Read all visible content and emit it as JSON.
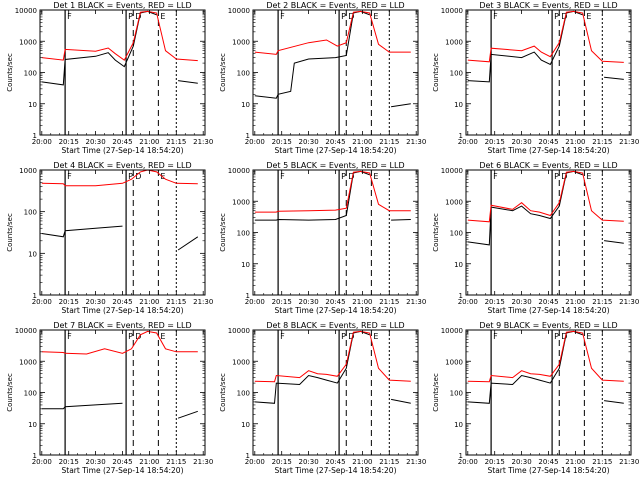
{
  "figure": {
    "xaxis_title": "Start Time (27-Sep-14 18:54:20)",
    "yaxis_title": "Counts/sec",
    "legend_text": "BLACK = Events, RED = LLD",
    "colors": {
      "events": "#000000",
      "lld": "#ff0000"
    },
    "x_tick_labels": [
      "20:00",
      "20:15",
      "20:30",
      "20:45",
      "21:00",
      "21:15",
      "21:30"
    ],
    "y_tick_labels": [
      "1",
      "10",
      "100",
      "1000",
      "10000"
    ],
    "marker_labels": [
      "F",
      "P",
      "D",
      "E"
    ]
  },
  "chart_data": [
    {
      "type": "line",
      "title": "Det 1",
      "yscale": "log",
      "ylim": [
        1,
        10000
      ],
      "xlim": [
        "19:59",
        "21:31"
      ],
      "x_ticks": [
        "20:00",
        "20:15",
        "20:30",
        "20:45",
        "21:00",
        "21:15",
        "21:30"
      ],
      "marker_lines": {
        "F": "20:13",
        "P": "20:47",
        "D": "20:51",
        "E": "21:05",
        "end": "21:15"
      },
      "series": [
        {
          "name": "Events",
          "color": "#000000",
          "x": [
            "20:00",
            "20:12",
            "20:13",
            "20:30",
            "20:37",
            "20:41",
            "20:46",
            "20:51",
            "20:55",
            "20:59",
            "21:04",
            "21:15",
            "21:16",
            "21:27"
          ],
          "y": [
            50,
            40,
            260,
            330,
            430,
            250,
            155,
            700,
            8000,
            9000,
            7000,
            null,
            55,
            45
          ]
        },
        {
          "name": "LLD",
          "color": "#ff0000",
          "x": [
            "20:00",
            "20:12",
            "20:13",
            "20:30",
            "20:37",
            "20:41",
            "20:46",
            "20:51",
            "20:55",
            "20:59",
            "21:04",
            "21:09",
            "21:15",
            "21:27"
          ],
          "y": [
            300,
            250,
            550,
            480,
            610,
            400,
            250,
            900,
            8500,
            9000,
            8000,
            500,
            270,
            240
          ]
        }
      ]
    },
    {
      "type": "line",
      "title": "Det 2",
      "yscale": "log",
      "ylim": [
        1,
        10000
      ],
      "xlim": [
        "19:59",
        "21:31"
      ],
      "x_ticks": [
        "20:00",
        "20:15",
        "20:30",
        "20:45",
        "21:00",
        "21:15",
        "21:30"
      ],
      "marker_lines": {
        "F": "20:13",
        "P": "20:47",
        "D": "20:51",
        "E": "21:05",
        "end": "21:15"
      },
      "series": [
        {
          "name": "Events",
          "color": "#000000",
          "x": [
            "20:00",
            "20:12",
            "20:13",
            "20:20",
            "20:22",
            "20:30",
            "20:45",
            "20:51",
            "20:55",
            "20:59",
            "21:04",
            "21:09",
            "21:16",
            "21:27"
          ],
          "y": [
            18,
            15,
            20,
            25,
            200,
            270,
            300,
            350,
            8000,
            9000,
            7000,
            null,
            8,
            10
          ]
        },
        {
          "name": "LLD",
          "color": "#ff0000",
          "x": [
            "20:00",
            "20:12",
            "20:13",
            "20:30",
            "20:40",
            "20:46",
            "20:51",
            "20:55",
            "20:59",
            "21:04",
            "21:09",
            "21:15",
            "21:27"
          ],
          "y": [
            450,
            380,
            500,
            900,
            1100,
            700,
            900,
            8500,
            9000,
            8000,
            800,
            450,
            450
          ]
        }
      ]
    },
    {
      "type": "line",
      "title": "Det 3",
      "yscale": "log",
      "ylim": [
        1,
        10000
      ],
      "xlim": [
        "19:59",
        "21:31"
      ],
      "x_ticks": [
        "20:00",
        "20:15",
        "20:30",
        "20:45",
        "21:00",
        "21:15",
        "21:30"
      ],
      "marker_lines": {
        "F": "20:13",
        "P": "20:47",
        "D": "20:51",
        "E": "21:05",
        "end": "21:15"
      },
      "series": [
        {
          "name": "Events",
          "color": "#000000",
          "x": [
            "20:00",
            "20:12",
            "20:13",
            "20:30",
            "20:37",
            "20:41",
            "20:46",
            "20:51",
            "20:55",
            "20:59",
            "21:04",
            "21:09",
            "21:16",
            "21:27"
          ],
          "y": [
            55,
            50,
            380,
            300,
            450,
            250,
            180,
            700,
            8000,
            9000,
            7000,
            null,
            70,
            60
          ]
        },
        {
          "name": "LLD",
          "color": "#ff0000",
          "x": [
            "20:00",
            "20:12",
            "20:13",
            "20:30",
            "20:37",
            "20:41",
            "20:46",
            "20:51",
            "20:55",
            "20:59",
            "21:04",
            "21:09",
            "21:15",
            "21:27"
          ],
          "y": [
            250,
            220,
            600,
            500,
            700,
            450,
            320,
            900,
            8500,
            9000,
            8000,
            500,
            230,
            210
          ]
        }
      ]
    },
    {
      "type": "line",
      "title": "Det 4",
      "yscale": "log",
      "ylim": [
        1,
        1000
      ],
      "xlim": [
        "19:59",
        "21:31"
      ],
      "x_ticks": [
        "20:00",
        "20:15",
        "20:30",
        "20:45",
        "21:00",
        "21:15",
        "21:30"
      ],
      "marker_lines": {
        "F": "20:13",
        "P": "20:47",
        "D": "20:51",
        "E": "21:05",
        "end": "21:15"
      },
      "series": [
        {
          "name": "Events",
          "color": "#000000",
          "x": [
            "20:00",
            "20:12",
            "20:13",
            "20:30",
            "20:45",
            "20:46",
            "21:04",
            "21:16",
            "21:27"
          ],
          "y": [
            30,
            25,
            35,
            40,
            45,
            null,
            null,
            12,
            25
          ]
        },
        {
          "name": "LLD",
          "color": "#ff0000",
          "x": [
            "20:00",
            "20:12",
            "20:13",
            "20:30",
            "20:45",
            "20:50",
            "20:55",
            "20:59",
            "21:04",
            "21:09",
            "21:15",
            "21:27"
          ],
          "y": [
            480,
            470,
            420,
            420,
            480,
            600,
            900,
            1000,
            900,
            600,
            480,
            470
          ]
        }
      ]
    },
    {
      "type": "line",
      "title": "Det 5",
      "yscale": "log",
      "ylim": [
        1,
        10000
      ],
      "xlim": [
        "19:59",
        "21:31"
      ],
      "x_ticks": [
        "20:00",
        "20:15",
        "20:30",
        "20:45",
        "21:00",
        "21:15",
        "21:30"
      ],
      "marker_lines": {
        "F": "20:13",
        "P": "20:47",
        "D": "20:51",
        "E": "21:05",
        "end": "21:15"
      },
      "series": [
        {
          "name": "Events",
          "color": "#000000",
          "x": [
            "20:00",
            "20:12",
            "20:13",
            "20:30",
            "20:45",
            "20:51",
            "20:55",
            "20:59",
            "21:04",
            "21:09",
            "21:16",
            "21:27"
          ],
          "y": [
            250,
            250,
            260,
            250,
            260,
            350,
            8000,
            9000,
            7000,
            null,
            250,
            260
          ]
        },
        {
          "name": "LLD",
          "color": "#ff0000",
          "x": [
            "20:00",
            "20:12",
            "20:13",
            "20:30",
            "20:45",
            "20:51",
            "20:55",
            "20:59",
            "21:04",
            "21:09",
            "21:15",
            "21:27"
          ],
          "y": [
            450,
            450,
            480,
            500,
            520,
            600,
            8500,
            9000,
            8000,
            800,
            500,
            500
          ]
        }
      ]
    },
    {
      "type": "line",
      "title": "Det 6",
      "yscale": "log",
      "ylim": [
        1,
        10000
      ],
      "xlim": [
        "19:59",
        "21:31"
      ],
      "x_ticks": [
        "20:00",
        "20:15",
        "20:30",
        "20:45",
        "21:00",
        "21:15",
        "21:30"
      ],
      "marker_lines": {
        "F": "20:13",
        "P": "20:47",
        "D": "20:51",
        "E": "21:05",
        "end": "21:15"
      },
      "series": [
        {
          "name": "Events",
          "color": "#000000",
          "x": [
            "20:00",
            "20:12",
            "20:13",
            "20:25",
            "20:30",
            "20:35",
            "20:40",
            "20:46",
            "20:51",
            "20:55",
            "20:59",
            "21:04",
            "21:09",
            "21:16",
            "21:27"
          ],
          "y": [
            50,
            40,
            650,
            500,
            700,
            400,
            350,
            280,
            700,
            8000,
            9000,
            7000,
            null,
            55,
            45
          ]
        },
        {
          "name": "LLD",
          "color": "#ff0000",
          "x": [
            "20:00",
            "20:12",
            "20:13",
            "20:25",
            "20:30",
            "20:35",
            "20:40",
            "20:46",
            "20:51",
            "20:55",
            "20:59",
            "21:04",
            "21:09",
            "21:15",
            "21:27"
          ],
          "y": [
            250,
            220,
            750,
            550,
            900,
            500,
            450,
            350,
            900,
            8500,
            9000,
            8000,
            500,
            250,
            230
          ]
        }
      ]
    },
    {
      "type": "line",
      "title": "Det 7",
      "yscale": "log",
      "ylim": [
        1,
        10000
      ],
      "xlim": [
        "19:59",
        "21:31"
      ],
      "x_ticks": [
        "20:00",
        "20:15",
        "20:30",
        "20:45",
        "21:00",
        "21:15",
        "21:30"
      ],
      "marker_lines": {
        "F": "20:13",
        "P": "20:47",
        "D": "20:51",
        "E": "21:05",
        "end": "21:15"
      },
      "series": [
        {
          "name": "Events",
          "color": "#000000",
          "x": [
            "20:00",
            "20:12",
            "20:13",
            "20:30",
            "20:45",
            "20:46",
            "21:04",
            "21:16",
            "21:27"
          ],
          "y": [
            30,
            30,
            35,
            40,
            45,
            null,
            null,
            15,
            25
          ]
        },
        {
          "name": "LLD",
          "color": "#ff0000",
          "x": [
            "20:00",
            "20:12",
            "20:13",
            "20:25",
            "20:35",
            "20:45",
            "20:50",
            "20:55",
            "20:59",
            "21:04",
            "21:09",
            "21:15",
            "21:27"
          ],
          "y": [
            2000,
            1900,
            1800,
            1700,
            2500,
            1800,
            2500,
            7000,
            9000,
            8000,
            2500,
            2000,
            2000
          ]
        }
      ]
    },
    {
      "type": "line",
      "title": "Det 8",
      "yscale": "log",
      "ylim": [
        1,
        10000
      ],
      "xlim": [
        "19:59",
        "21:31"
      ],
      "x_ticks": [
        "20:00",
        "20:15",
        "20:30",
        "20:45",
        "21:00",
        "21:15",
        "21:30"
      ],
      "marker_lines": {
        "F": "20:13",
        "P": "20:47",
        "D": "20:51",
        "E": "21:05",
        "end": "21:15"
      },
      "series": [
        {
          "name": "Events",
          "color": "#000000",
          "x": [
            "20:00",
            "20:11",
            "20:12",
            "20:25",
            "20:30",
            "20:35",
            "20:40",
            "20:46",
            "20:51",
            "20:55",
            "20:59",
            "21:04",
            "21:09",
            "21:16",
            "21:27"
          ],
          "y": [
            50,
            45,
            200,
            180,
            350,
            300,
            250,
            200,
            600,
            8000,
            9000,
            7000,
            null,
            60,
            45
          ]
        },
        {
          "name": "LLD",
          "color": "#ff0000",
          "x": [
            "20:00",
            "20:11",
            "20:12",
            "20:25",
            "20:30",
            "20:35",
            "20:40",
            "20:46",
            "20:51",
            "20:55",
            "20:59",
            "21:04",
            "21:09",
            "21:15",
            "21:27"
          ],
          "y": [
            230,
            220,
            350,
            300,
            500,
            400,
            380,
            330,
            800,
            8500,
            9000,
            8000,
            600,
            250,
            230
          ]
        }
      ]
    },
    {
      "type": "line",
      "title": "Det 9",
      "yscale": "log",
      "ylim": [
        1,
        10000
      ],
      "xlim": [
        "19:59",
        "21:31"
      ],
      "x_ticks": [
        "20:00",
        "20:15",
        "20:30",
        "20:45",
        "21:00",
        "21:15",
        "21:30"
      ],
      "marker_lines": {
        "F": "20:13",
        "P": "20:47",
        "D": "20:51",
        "E": "21:05",
        "end": "21:15"
      },
      "series": [
        {
          "name": "Events",
          "color": "#000000",
          "x": [
            "20:00",
            "20:12",
            "20:13",
            "20:25",
            "20:30",
            "20:35",
            "20:40",
            "20:46",
            "20:51",
            "20:55",
            "20:59",
            "21:04",
            "21:09",
            "21:16",
            "21:27"
          ],
          "y": [
            50,
            45,
            200,
            180,
            350,
            300,
            250,
            200,
            600,
            8000,
            9000,
            7000,
            null,
            55,
            45
          ]
        },
        {
          "name": "LLD",
          "color": "#ff0000",
          "x": [
            "20:00",
            "20:12",
            "20:13",
            "20:25",
            "20:30",
            "20:35",
            "20:40",
            "20:46",
            "20:51",
            "20:55",
            "20:59",
            "21:04",
            "21:09",
            "21:15",
            "21:27"
          ],
          "y": [
            230,
            220,
            350,
            300,
            500,
            400,
            380,
            330,
            800,
            8500,
            9000,
            8000,
            600,
            250,
            230
          ]
        }
      ]
    }
  ]
}
